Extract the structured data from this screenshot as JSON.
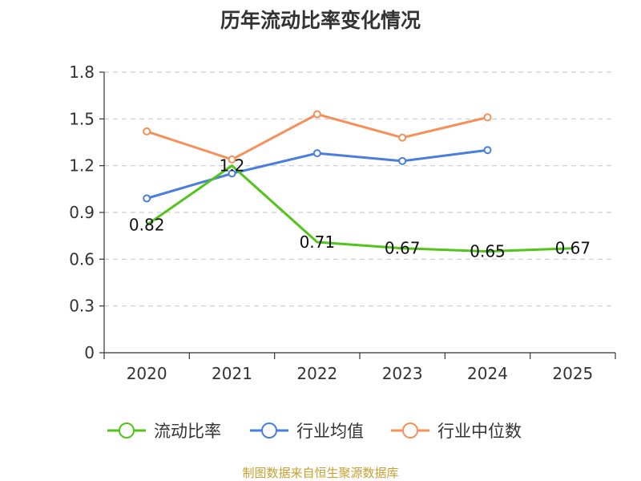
{
  "chart_data": {
    "type": "line",
    "title": "历年流动比率变化情况",
    "categories": [
      "2020",
      "2021",
      "2022",
      "2023",
      "2024",
      "2025"
    ],
    "ylim": [
      0,
      1.8
    ],
    "yticks": [
      0,
      0.3,
      0.6,
      0.9,
      1.2,
      1.5,
      1.8
    ],
    "ytick_labels": [
      "0",
      "0.3",
      "0.6",
      "0.9",
      "1.2",
      "1.5",
      "1.8"
    ],
    "grid": true,
    "legend_position": "bottom",
    "series": [
      {
        "name": "流动比率",
        "color": "#52c41a",
        "values": [
          0.82,
          1.2,
          0.71,
          0.67,
          0.65,
          0.67
        ],
        "labels": [
          "0.82",
          "1.2",
          "0.71",
          "0.67",
          "0.65",
          "0.67"
        ],
        "markers": false
      },
      {
        "name": "行业均值",
        "color": "#4a7ede",
        "values": [
          0.99,
          1.15,
          1.28,
          1.23,
          1.3,
          null
        ],
        "markers": true
      },
      {
        "name": "行业中位数",
        "color": "#f5905a",
        "values": [
          1.42,
          1.24,
          1.53,
          1.38,
          1.51,
          null
        ],
        "markers": true
      }
    ],
    "source": "制图数据来自恒生聚源数据库"
  }
}
